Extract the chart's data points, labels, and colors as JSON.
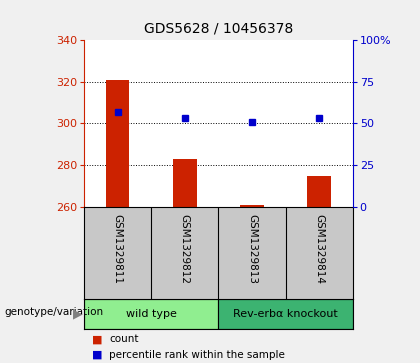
{
  "title": "GDS5628 / 10456378",
  "samples": [
    "GSM1329811",
    "GSM1329812",
    "GSM1329813",
    "GSM1329814"
  ],
  "counts": [
    321,
    283,
    261,
    275
  ],
  "count_base": 260,
  "percentile_ranks": [
    57,
    53,
    51,
    53
  ],
  "left_ylim": [
    260,
    340
  ],
  "left_yticks": [
    260,
    280,
    300,
    320,
    340
  ],
  "right_ylim": [
    0,
    100
  ],
  "right_yticks": [
    0,
    25,
    50,
    75,
    100
  ],
  "right_yticklabels": [
    "0",
    "25",
    "50",
    "75",
    "100%"
  ],
  "bar_color": "#cc2200",
  "dot_color": "#0000cc",
  "grid_color": "#000000",
  "genotype_groups": [
    {
      "label": "wild type",
      "samples": [
        0,
        1
      ],
      "color": "#90ee90"
    },
    {
      "label": "Rev-erbα knockout",
      "samples": [
        2,
        3
      ],
      "color": "#3cb371"
    }
  ],
  "genotype_label": "genotype/variation",
  "legend_items": [
    {
      "label": "count",
      "color": "#cc2200"
    },
    {
      "label": "percentile rank within the sample",
      "color": "#0000cc"
    }
  ],
  "left_axis_color": "#cc2200",
  "right_axis_color": "#0000cc",
  "plot_bg_color": "#ffffff",
  "sample_bg_color": "#c8c8c8",
  "fig_bg_color": "#f0f0f0"
}
